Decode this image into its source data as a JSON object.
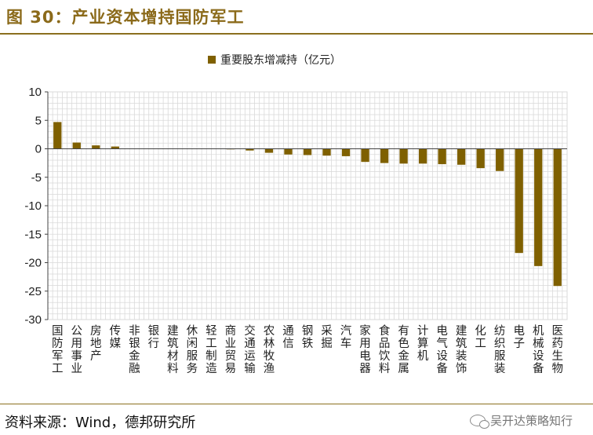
{
  "header": {
    "title": "图 30：产业资本增持国防军工"
  },
  "footer": {
    "source": "资料来源：Wind，德邦研究所",
    "watermark": "吴开达策略知行"
  },
  "colors": {
    "bar": "#7f6000",
    "frame": "#8b6f1f",
    "grid": "#d9d9d9",
    "axis": "#444444"
  },
  "chart_data": {
    "type": "bar",
    "title": "",
    "xlabel": "",
    "ylabel": "",
    "ylim": [
      -30,
      10
    ],
    "yticks": [
      10,
      5,
      0,
      -5,
      -10,
      -15,
      -20,
      -25,
      -30
    ],
    "grid": true,
    "legend": {
      "position": "top",
      "entries": [
        "重要股东增减持（亿元）"
      ]
    },
    "categories": [
      "国防军工",
      "公用事业",
      "房地产",
      "传媒",
      "非银金融",
      "银行",
      "建筑材料",
      "休闲服务",
      "轻工制造",
      "商业贸易",
      "交通运输",
      "农林牧渔",
      "通信",
      "钢铁",
      "采掘",
      "汽车",
      "家用电器",
      "食品饮料",
      "有色金属",
      "计算机",
      "电气设备",
      "建筑装饰",
      "化工",
      "纺织服装",
      "电子",
      "机械设备",
      "医药生物"
    ],
    "series": [
      {
        "name": "重要股东增减持（亿元）",
        "values": [
          4.7,
          1.1,
          0.6,
          0.4,
          0.05,
          0.0,
          0.0,
          0.0,
          0.0,
          -0.1,
          -0.3,
          -0.7,
          -1.0,
          -1.1,
          -1.2,
          -1.3,
          -2.3,
          -2.5,
          -2.6,
          -2.6,
          -2.7,
          -2.8,
          -3.4,
          -3.9,
          -18.3,
          -20.6,
          -24.1
        ]
      }
    ]
  }
}
